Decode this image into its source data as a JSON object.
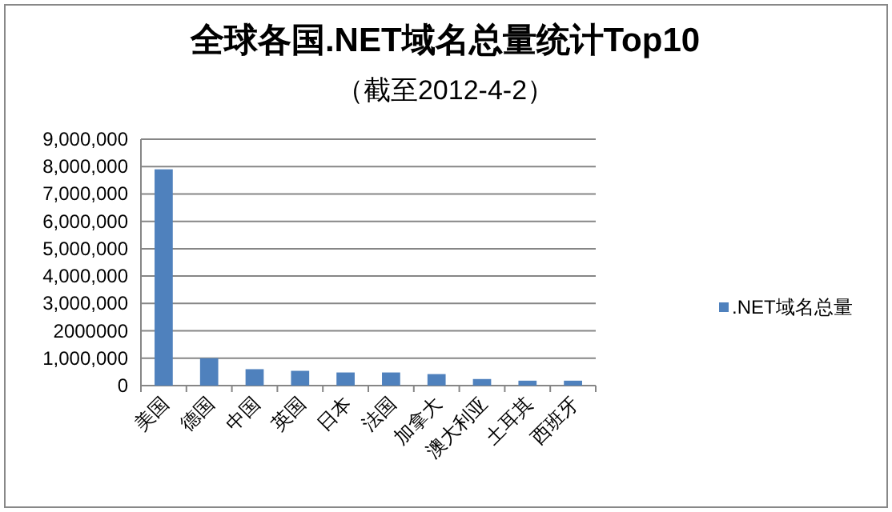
{
  "chart_data": {
    "type": "bar",
    "title": "全球各国.NET域名总量统计Top10",
    "subtitle": "（截至2012-4-2）",
    "categories": [
      "美国",
      "德国",
      "中国",
      "英国",
      "日本",
      "法国",
      "加拿大",
      "澳大利亚",
      "土耳其",
      "西班牙"
    ],
    "series": [
      {
        "name": ".NET域名总量",
        "color": "#4f81bd",
        "values": [
          7900000,
          1000000,
          600000,
          540000,
          480000,
          480000,
          420000,
          240000,
          180000,
          180000
        ]
      }
    ],
    "ylim": [
      0,
      9000000
    ],
    "yticks": [
      {
        "value": 0,
        "label": "0"
      },
      {
        "value": 1000000,
        "label": "1,000,000"
      },
      {
        "value": 2000000,
        "label": "2000000"
      },
      {
        "value": 3000000,
        "label": "3,000,000"
      },
      {
        "value": 4000000,
        "label": "4,000,000"
      },
      {
        "value": 5000000,
        "label": "5,000,000"
      },
      {
        "value": 6000000,
        "label": "6,000,000"
      },
      {
        "value": 7000000,
        "label": "7,000,000"
      },
      {
        "value": 8000000,
        "label": "8,000,000"
      },
      {
        "value": 9000000,
        "label": "9,000,000"
      }
    ],
    "grid": "y",
    "legend": "right"
  }
}
